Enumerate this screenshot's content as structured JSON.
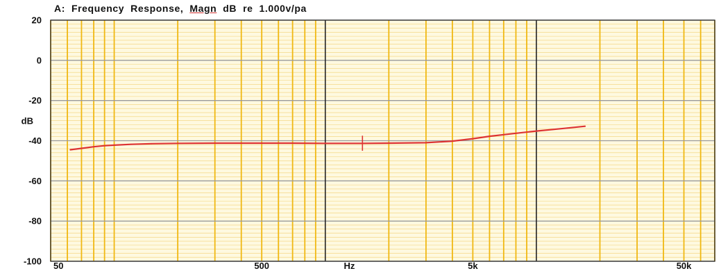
{
  "chart_data": {
    "type": "line",
    "title": "A:  Frequency  Response,  Magn  dB  re  1.000v/pa",
    "xlabel": "Hz",
    "ylabel": "dB",
    "x_scale": "log",
    "xlim": [
      50,
      70000
    ],
    "ylim": [
      -100,
      20
    ],
    "x_ticks": [
      {
        "value": 50,
        "label": "50"
      },
      {
        "value": 500,
        "label": "500"
      },
      {
        "value": 5000,
        "label": "5k"
      },
      {
        "value": 50000,
        "label": "50k"
      }
    ],
    "y_ticks": [
      {
        "value": 20,
        "label": "20"
      },
      {
        "value": 0,
        "label": "0"
      },
      {
        "value": -20,
        "label": "-20"
      },
      {
        "value": -40,
        "label": "-40"
      },
      {
        "value": -60,
        "label": "-60"
      },
      {
        "value": -80,
        "label": "-80"
      },
      {
        "value": -100,
        "label": "-100"
      }
    ],
    "grid": true,
    "colors": {
      "background": "#fef9e0",
      "grid_minor": "#efc552",
      "grid_major": "#f0b812",
      "grid_decade": "#222222",
      "grid_horizontal": "#9a9a9a",
      "series": "#dd3333"
    },
    "series": [
      {
        "x": [
          62,
          70,
          80,
          90,
          100,
          120,
          150,
          200,
          300,
          500,
          700,
          1000,
          1500,
          2000,
          3000,
          4000,
          5000,
          6000,
          7000,
          8000,
          10000,
          12000,
          14000,
          17000
        ],
        "y": [
          -44.5,
          -43.8,
          -43.0,
          -42.5,
          -42.2,
          -41.8,
          -41.5,
          -41.3,
          -41.2,
          -41.2,
          -41.2,
          -41.3,
          -41.3,
          -41.2,
          -41.0,
          -40.2,
          -39.0,
          -37.8,
          -37.0,
          -36.3,
          -35.2,
          -34.4,
          -33.7,
          -32.8
        ]
      }
    ]
  }
}
